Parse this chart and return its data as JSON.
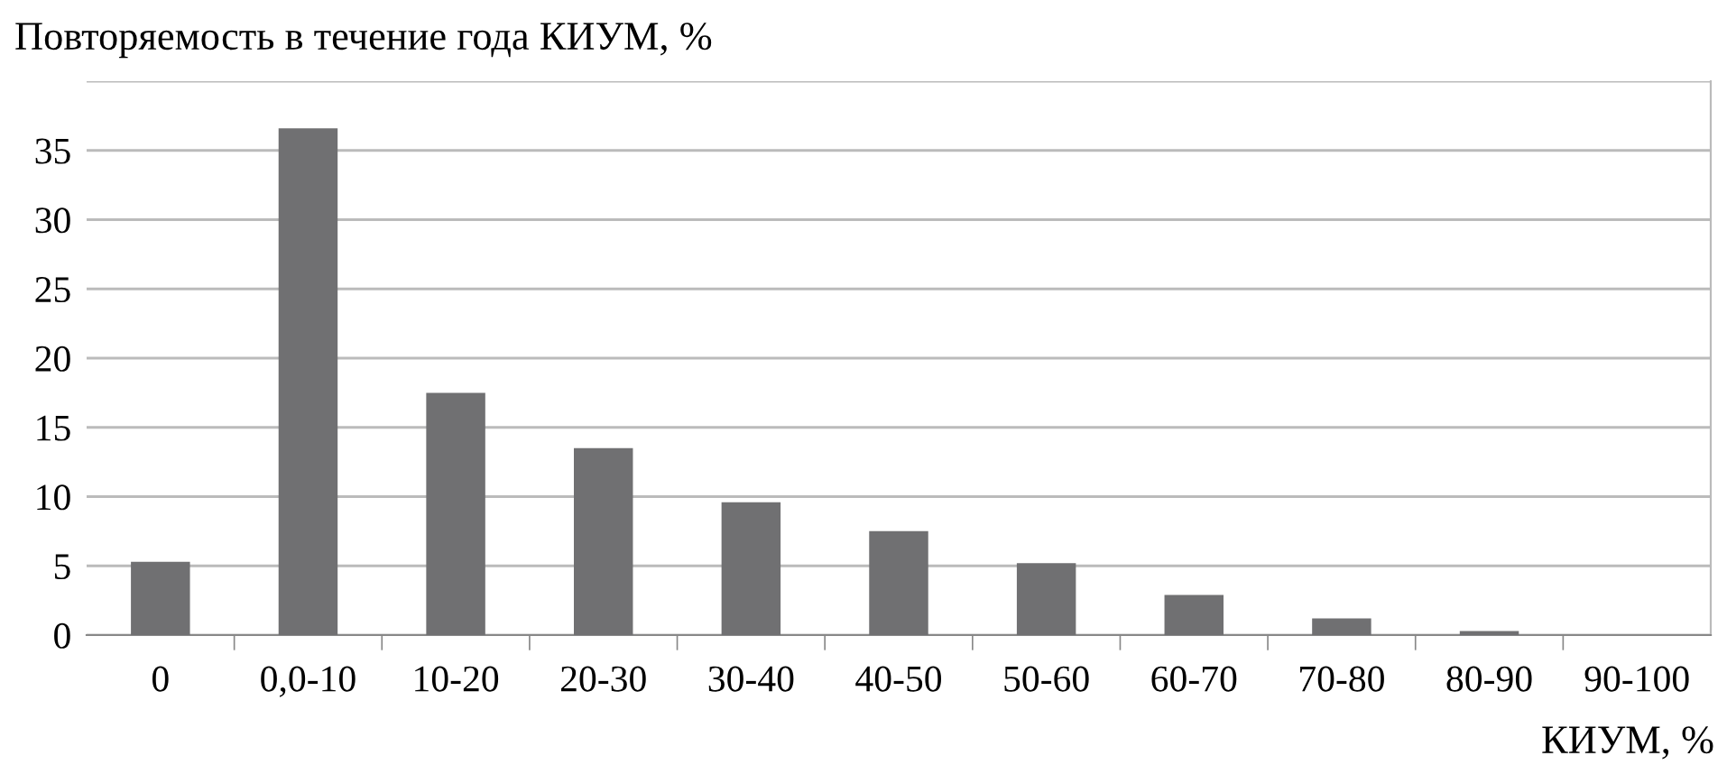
{
  "chart_data": {
    "type": "bar",
    "title": "Повторяемость в течение года КИУМ, %",
    "xlabel": "КИУМ, %",
    "categories": [
      "0",
      "0,0-10",
      "10-20",
      "20-30",
      "30-40",
      "40-50",
      "50-60",
      "60-70",
      "70-80",
      "80-90",
      "90-100"
    ],
    "values": [
      5.3,
      36.6,
      17.5,
      13.5,
      9.6,
      7.5,
      5.2,
      2.9,
      1.2,
      0.3,
      0
    ],
    "color": "#707072",
    "ylim": [
      0,
      40
    ],
    "yticks": [
      0,
      5,
      10,
      15,
      20,
      25,
      30,
      35,
      {
        "value": 40,
        "label": null
      }
    ],
    "grid": "y"
  }
}
